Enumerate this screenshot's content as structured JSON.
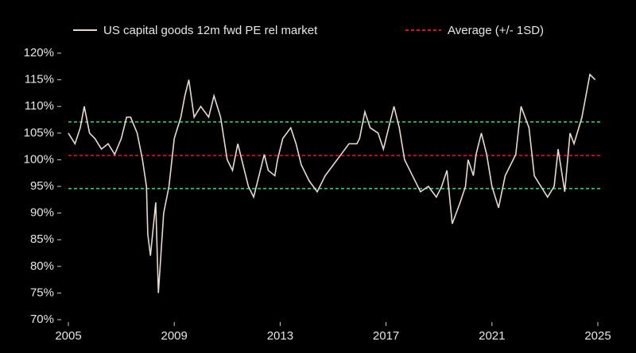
{
  "chart_data": {
    "type": "line",
    "series": [
      {
        "name": "US capital goods 12m fwd PE rel market",
        "color": "#e8d9cf",
        "x": [
          2005.0,
          2005.25,
          2005.45,
          2005.6,
          2005.8,
          2006.0,
          2006.25,
          2006.5,
          2006.75,
          2007.0,
          2007.2,
          2007.35,
          2007.6,
          2007.8,
          2007.95,
          2008.0,
          2008.1,
          2008.3,
          2008.4,
          2008.6,
          2008.8,
          2009.0,
          2009.25,
          2009.4,
          2009.55,
          2009.75,
          2010.0,
          2010.3,
          2010.5,
          2010.75,
          2011.0,
          2011.2,
          2011.4,
          2011.7,
          2011.8,
          2012.0,
          2012.2,
          2012.4,
          2012.55,
          2012.8,
          2012.9,
          2013.1,
          2013.4,
          2013.6,
          2013.8,
          2014.1,
          2014.4,
          2014.7,
          2015.0,
          2015.3,
          2015.6,
          2015.9,
          2016.0,
          2016.2,
          2016.4,
          2016.7,
          2016.9,
          2017.1,
          2017.3,
          2017.5,
          2017.7,
          2018.0,
          2018.3,
          2018.6,
          2018.9,
          2019.1,
          2019.3,
          2019.5,
          2019.8,
          2020.0,
          2020.1,
          2020.3,
          2020.4,
          2020.6,
          2020.8,
          2021.0,
          2021.25,
          2021.5,
          2021.7,
          2021.9,
          2022.1,
          2022.4,
          2022.6,
          2022.85,
          2023.1,
          2023.35,
          2023.5,
          2023.75,
          2023.95,
          2024.1,
          2024.4,
          2024.55,
          2024.7,
          2024.9
        ],
        "values": [
          105,
          103,
          106,
          110,
          105,
          104,
          102,
          103,
          101,
          104,
          108,
          108,
          105,
          100,
          95,
          86,
          82,
          92,
          75,
          90,
          95,
          104,
          108,
          112,
          115,
          108,
          110,
          108,
          112,
          108,
          100,
          98,
          103,
          97,
          95,
          93,
          97,
          101,
          98,
          97,
          100,
          104,
          106,
          103,
          99,
          96,
          94,
          97,
          99,
          101,
          103,
          103,
          104,
          109,
          106,
          105,
          102,
          106,
          110,
          106,
          100,
          97,
          94,
          95,
          93,
          95,
          98,
          88,
          92,
          95,
          100,
          97,
          101,
          105,
          101,
          95,
          91,
          97,
          99,
          101,
          110,
          106,
          97,
          95,
          93,
          95,
          102,
          94,
          105,
          103,
          108,
          112,
          116,
          115
        ]
      }
    ],
    "reference_lines": [
      {
        "name": "Average (+/- 1SD)",
        "color": "#e0102a",
        "value": 100.8
      },
      {
        "color": "#36d07a",
        "value": 107.1
      },
      {
        "color": "#36d07a",
        "value": 94.6
      }
    ],
    "xlim": [
      2005,
      2025
    ],
    "xticks": [
      2005,
      2009,
      2013,
      2017,
      2021,
      2025
    ],
    "ylim": [
      70,
      120
    ],
    "yticks": [
      {
        "value": 70,
        "label": "70%"
      },
      {
        "value": 75,
        "label": "75%"
      },
      {
        "value": 80,
        "label": "80%"
      },
      {
        "value": 85,
        "label": "85%"
      },
      {
        "value": 90,
        "label": "90%"
      },
      {
        "value": 95,
        "label": "95%"
      },
      {
        "value": 100,
        "label": "100%"
      },
      {
        "value": 105,
        "label": "105%"
      },
      {
        "value": 110,
        "label": "110%"
      },
      {
        "value": 115,
        "label": "115%"
      },
      {
        "value": 120,
        "label": "120%"
      }
    ]
  }
}
